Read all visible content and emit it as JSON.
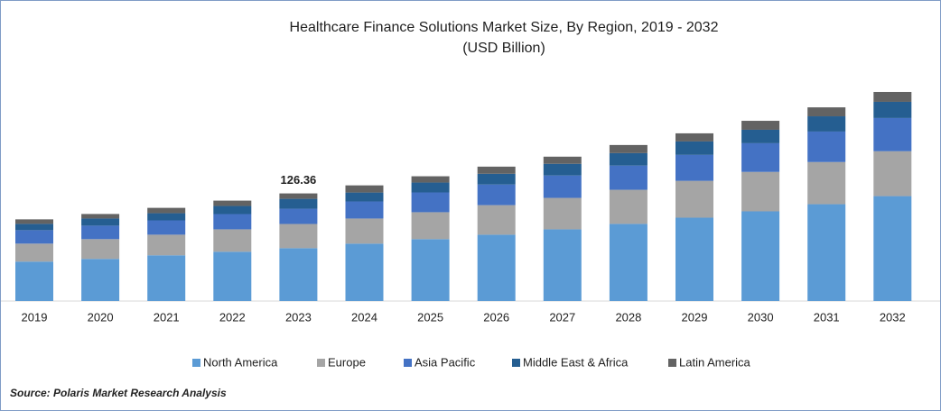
{
  "chart_data": {
    "type": "stacked-bar",
    "title": "Healthcare Finance Solutions Market Size, By Region, 2019 - 2032",
    "subtitle": "(USD Billion)",
    "categories": [
      "2019",
      "2020",
      "2021",
      "2022",
      "2023",
      "2024",
      "2025",
      "2026",
      "2027",
      "2028",
      "2029",
      "2030",
      "2031",
      "2032"
    ],
    "series": [
      {
        "name": "North America",
        "color": "#5b9bd5",
        "values": [
          46.3,
          49.5,
          53.7,
          57.9,
          62.1,
          67.4,
          72.7,
          77.9,
          84.2,
          90.6,
          97.9,
          105.3,
          113.7,
          123.2
        ]
      },
      {
        "name": "Europe",
        "color": "#a5a5a5",
        "values": [
          21.1,
          23.2,
          24.2,
          26.3,
          28.4,
          29.5,
          31.6,
          34.7,
          36.9,
          40.0,
          43.2,
          46.3,
          49.5,
          52.7
        ]
      },
      {
        "name": "Asia Pacific",
        "color": "#4472c4",
        "values": [
          15.8,
          15.8,
          16.8,
          17.9,
          17.9,
          20.0,
          23.2,
          24.2,
          26.3,
          28.4,
          30.5,
          33.7,
          35.8,
          39.0
        ]
      },
      {
        "name": "Middle East & Africa",
        "color": "#255e91",
        "values": [
          7.4,
          8.4,
          8.4,
          9.5,
          11.6,
          10.5,
          11.6,
          12.6,
          13.7,
          14.7,
          15.8,
          15.8,
          17.9,
          19.0
        ]
      },
      {
        "name": "Latin America",
        "color": "#636363",
        "values": [
          5.3,
          5.3,
          6.3,
          6.3,
          6.36,
          8.4,
          7.4,
          8.4,
          8.4,
          9.5,
          9.5,
          10.5,
          10.5,
          11.6
        ]
      }
    ],
    "annotations": [
      {
        "x": "2023",
        "text": "126.36"
      }
    ],
    "source": "Source: Polaris  Market Research Analysis"
  }
}
